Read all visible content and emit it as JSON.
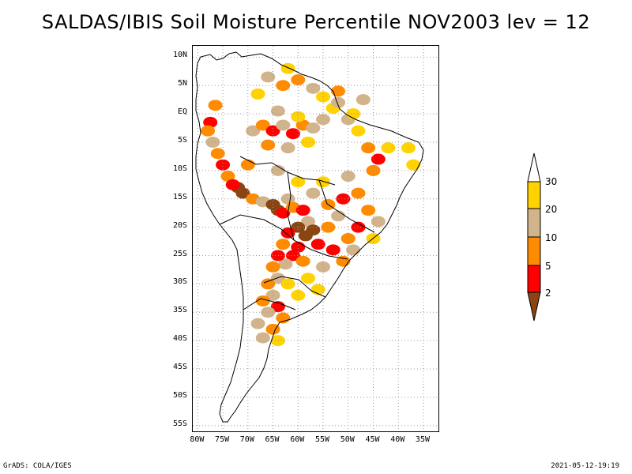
{
  "title": "SALDAS/IBIS Soil Moisture Percentile NOV2003 lev = 12",
  "lat_labels": [
    "10N",
    "5N",
    "EQ",
    "5S",
    "10S",
    "15S",
    "20S",
    "25S",
    "30S",
    "35S",
    "40S",
    "45S",
    "50S",
    "55S"
  ],
  "lon_labels": [
    "80W",
    "75W",
    "70W",
    "65W",
    "60W",
    "55W",
    "50W",
    "45W",
    "40W",
    "35W"
  ],
  "legend": {
    "labels": [
      "30",
      "20",
      "10",
      "5",
      "2"
    ],
    "colors": {
      "above30": "#ffffff",
      "p20_30": "#ffd200",
      "p10_20": "#d2b48c",
      "p5_10": "#ff8c00",
      "p2_5": "#ff0000",
      "below2": "#8b4513"
    }
  },
  "footer": {
    "left": "GrADS: COLA/IGES",
    "right": "2021-05-12-19:19"
  },
  "patches": [
    {
      "lon": -76.5,
      "lat": 1.5,
      "c": "p5_10"
    },
    {
      "lon": -77.5,
      "lat": -1.5,
      "c": "p2_5"
    },
    {
      "lon": -78,
      "lat": -3,
      "c": "p5_10"
    },
    {
      "lon": -77,
      "lat": -5,
      "c": "p10_20"
    },
    {
      "lon": -76,
      "lat": -7,
      "c": "p5_10"
    },
    {
      "lon": -75,
      "lat": -9,
      "c": "p2_5"
    },
    {
      "lon": -74,
      "lat": -11,
      "c": "p5_10"
    },
    {
      "lon": -72,
      "lat": -13,
      "c": "below2"
    },
    {
      "lon": -71,
      "lat": -14,
      "c": "below2"
    },
    {
      "lon": -73,
      "lat": -12.5,
      "c": "p2_5"
    },
    {
      "lon": -69,
      "lat": -15,
      "c": "p5_10"
    },
    {
      "lon": -67,
      "lat": -15.5,
      "c": "p10_20"
    },
    {
      "lon": -65,
      "lat": -16,
      "c": "below2"
    },
    {
      "lon": -64,
      "lat": -17,
      "c": "below2"
    },
    {
      "lon": -63,
      "lat": -17.5,
      "c": "p2_5"
    },
    {
      "lon": -62,
      "lat": -15,
      "c": "p10_20"
    },
    {
      "lon": -61,
      "lat": -16.5,
      "c": "p5_10"
    },
    {
      "lon": -59,
      "lat": -17,
      "c": "p2_5"
    },
    {
      "lon": -58,
      "lat": -19,
      "c": "p10_20"
    },
    {
      "lon": -60,
      "lat": -20,
      "c": "below2"
    },
    {
      "lon": -57,
      "lat": -20.5,
      "c": "below2"
    },
    {
      "lon": -58.5,
      "lat": -21.5,
      "c": "below2"
    },
    {
      "lon": -62,
      "lat": -21,
      "c": "p2_5"
    },
    {
      "lon": -63,
      "lat": -23,
      "c": "p5_10"
    },
    {
      "lon": -60,
      "lat": -23.5,
      "c": "p2_5"
    },
    {
      "lon": -61,
      "lat": -25,
      "c": "p2_5"
    },
    {
      "lon": -59,
      "lat": -26,
      "c": "p5_10"
    },
    {
      "lon": -62.5,
      "lat": -26.5,
      "c": "p10_20"
    },
    {
      "lon": -64,
      "lat": -25,
      "c": "p2_5"
    },
    {
      "lon": -65,
      "lat": -27,
      "c": "p5_10"
    },
    {
      "lon": -64,
      "lat": -29,
      "c": "p10_20"
    },
    {
      "lon": -66,
      "lat": -30,
      "c": "p5_10"
    },
    {
      "lon": -62,
      "lat": -30,
      "c": "p20_30"
    },
    {
      "lon": -65,
      "lat": -32,
      "c": "p10_20"
    },
    {
      "lon": -67,
      "lat": -33,
      "c": "p5_10"
    },
    {
      "lon": -64,
      "lat": -34,
      "c": "p2_5"
    },
    {
      "lon": -66,
      "lat": -35,
      "c": "p10_20"
    },
    {
      "lon": -63,
      "lat": -36,
      "c": "p5_10"
    },
    {
      "lon": -68,
      "lat": -37,
      "c": "p10_20"
    },
    {
      "lon": -65,
      "lat": -38,
      "c": "p5_10"
    },
    {
      "lon": -67,
      "lat": -39.5,
      "c": "p10_20"
    },
    {
      "lon": -64,
      "lat": -40,
      "c": "p20_30"
    },
    {
      "lon": -60,
      "lat": -32,
      "c": "p20_30"
    },
    {
      "lon": -58,
      "lat": -29,
      "c": "p20_30"
    },
    {
      "lon": -56,
      "lat": -31,
      "c": "p20_30"
    },
    {
      "lon": -69,
      "lat": -3,
      "c": "p10_20"
    },
    {
      "lon": -67,
      "lat": -2,
      "c": "p5_10"
    },
    {
      "lon": -65,
      "lat": -3,
      "c": "p2_5"
    },
    {
      "lon": -63,
      "lat": -2,
      "c": "p10_20"
    },
    {
      "lon": -61,
      "lat": -3.5,
      "c": "p2_5"
    },
    {
      "lon": -59,
      "lat": -2,
      "c": "p5_10"
    },
    {
      "lon": -57,
      "lat": -2.5,
      "c": "p10_20"
    },
    {
      "lon": -60,
      "lat": -0.5,
      "c": "p20_30"
    },
    {
      "lon": -64,
      "lat": 0.5,
      "c": "p10_20"
    },
    {
      "lon": -66,
      "lat": -5.5,
      "c": "p5_10"
    },
    {
      "lon": -62,
      "lat": -6,
      "c": "p10_20"
    },
    {
      "lon": -58,
      "lat": -5,
      "c": "p20_30"
    },
    {
      "lon": -55,
      "lat": -1,
      "c": "p10_20"
    },
    {
      "lon": -53,
      "lat": 1,
      "c": "p20_30"
    },
    {
      "lon": -55,
      "lat": 3,
      "c": "p20_30"
    },
    {
      "lon": -57,
      "lat": 4.5,
      "c": "p10_20"
    },
    {
      "lon": -60,
      "lat": 6,
      "c": "p5_10"
    },
    {
      "lon": -62,
      "lat": 8,
      "c": "p20_30"
    },
    {
      "lon": -63,
      "lat": 5,
      "c": "p5_10"
    },
    {
      "lon": -66,
      "lat": 6.5,
      "c": "p10_20"
    },
    {
      "lon": -68,
      "lat": 3.5,
      "c": "p20_30"
    },
    {
      "lon": -52,
      "lat": 2,
      "c": "p10_20"
    },
    {
      "lon": -50,
      "lat": -1,
      "c": "p10_20"
    },
    {
      "lon": -48,
      "lat": -3,
      "c": "p20_30"
    },
    {
      "lon": -46,
      "lat": -6,
      "c": "p5_10"
    },
    {
      "lon": -44,
      "lat": -8,
      "c": "p2_5"
    },
    {
      "lon": -45,
      "lat": -10,
      "c": "p5_10"
    },
    {
      "lon": -42,
      "lat": -6,
      "c": "p20_30"
    },
    {
      "lon": -38,
      "lat": -6,
      "c": "p20_30"
    },
    {
      "lon": -37,
      "lat": -9,
      "c": "p20_30"
    },
    {
      "lon": -50,
      "lat": -11,
      "c": "p10_20"
    },
    {
      "lon": -48,
      "lat": -14,
      "c": "p5_10"
    },
    {
      "lon": -51,
      "lat": -15,
      "c": "p2_5"
    },
    {
      "lon": -46,
      "lat": -17,
      "c": "p5_10"
    },
    {
      "lon": -44,
      "lat": -19,
      "c": "p10_20"
    },
    {
      "lon": -48,
      "lat": -20,
      "c": "p2_5"
    },
    {
      "lon": -50,
      "lat": -22,
      "c": "p5_10"
    },
    {
      "lon": -45,
      "lat": -22,
      "c": "p20_30"
    },
    {
      "lon": -52,
      "lat": -18,
      "c": "p10_20"
    },
    {
      "lon": -54,
      "lat": -20,
      "c": "p5_10"
    },
    {
      "lon": -53,
      "lat": -24,
      "c": "p2_5"
    },
    {
      "lon": -51,
      "lat": -26,
      "c": "p5_10"
    },
    {
      "lon": -49,
      "lat": -24,
      "c": "p10_20"
    },
    {
      "lon": -55,
      "lat": -12,
      "c": "p20_30"
    },
    {
      "lon": -57,
      "lat": -14,
      "c": "p10_20"
    },
    {
      "lon": -60,
      "lat": -12,
      "c": "p20_30"
    },
    {
      "lon": -64,
      "lat": -10,
      "c": "p10_20"
    },
    {
      "lon": -70,
      "lat": -9,
      "c": "p5_10"
    },
    {
      "lon": -56,
      "lat": -23,
      "c": "p2_5"
    },
    {
      "lon": -55,
      "lat": -27,
      "c": "p10_20"
    },
    {
      "lon": -54,
      "lat": -16,
      "c": "p5_10"
    },
    {
      "lon": -47,
      "lat": 2.5,
      "c": "p10_20"
    },
    {
      "lon": -52,
      "lat": 4,
      "c": "p5_10"
    },
    {
      "lon": -49,
      "lat": 0,
      "c": "p20_30"
    }
  ]
}
